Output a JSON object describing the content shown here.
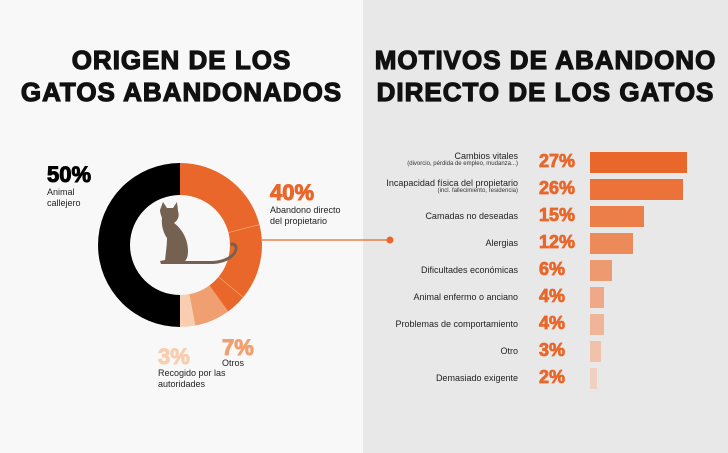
{
  "left_title": [
    "ORIGEN DE LOS",
    "GATOS ABANDONADOS"
  ],
  "right_title": [
    "MOTIVOS DE ABANDONO",
    "DIRECTO DE LOS GATOS"
  ],
  "chart_data": [
    {
      "type": "pie",
      "title": "ORIGEN DE LOS GATOS ABANDONADOS",
      "slices": [
        {
          "label": "Abandono directo del propietario",
          "value": 40,
          "pct_text": "40%",
          "color": "#e9672a"
        },
        {
          "label": "Otros",
          "value": 7,
          "pct_text": "7%",
          "color": "#f0a070"
        },
        {
          "label": "Recogido por las autoridades",
          "value": 3,
          "pct_text": "3%",
          "color": "#f8cdb0"
        },
        {
          "label": "Animal callejero",
          "value": 50,
          "pct_text": "50%",
          "color": "#000000"
        }
      ]
    },
    {
      "type": "bar",
      "title": "MOTIVOS DE ABANDONO DIRECTO DE LOS GATOS",
      "xlim": [
        0,
        27
      ],
      "items": [
        {
          "label": "Cambios vitales",
          "sub": "(divorcio, pérdida de empleo, mudanza...)",
          "value": 27,
          "pct_text": "27%",
          "color": "#e9672a"
        },
        {
          "label": "Incapacidad física del propietario",
          "sub": "(incl. fallecimiento, residencia)",
          "value": 26,
          "pct_text": "26%",
          "color": "#eb7238"
        },
        {
          "label": "Camadas no deseadas",
          "sub": "",
          "value": 15,
          "pct_text": "15%",
          "color": "#ec7e49"
        },
        {
          "label": "Alergias",
          "sub": "",
          "value": 12,
          "pct_text": "12%",
          "color": "#ed8a5a"
        },
        {
          "label": "Dificultades económicas",
          "sub": "",
          "value": 6,
          "pct_text": "6%",
          "color": "#ee9a70"
        },
        {
          "label": "Animal enfermo o anciano",
          "sub": "",
          "value": 4,
          "pct_text": "4%",
          "color": "#efa988"
        },
        {
          "label": "Problemas de comportamiento",
          "sub": "",
          "value": 4,
          "pct_text": "4%",
          "color": "#f0b498"
        },
        {
          "label": "Otro",
          "sub": "",
          "value": 3,
          "pct_text": "3%",
          "color": "#f0c2ac"
        },
        {
          "label": "Demasiado exigente",
          "sub": "",
          "value": 2,
          "pct_text": "2%",
          "color": "#f0d0c0"
        }
      ]
    }
  ]
}
